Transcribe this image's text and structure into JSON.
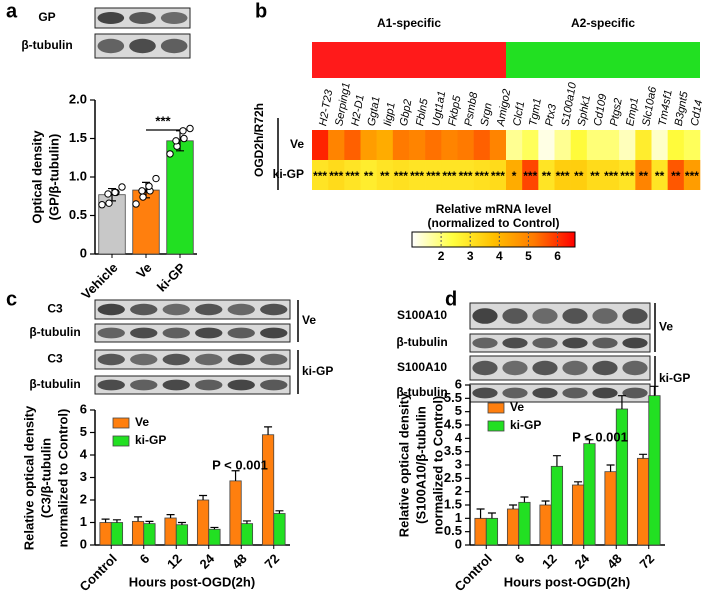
{
  "chart_data": [
    {
      "type": "bar",
      "panel": "a",
      "blot": {
        "rows": [
          "GP",
          "β-tubulin"
        ]
      },
      "ylabel": [
        "Optical density",
        "(GP/β-tubulin)"
      ],
      "categories": [
        "Vehicle",
        "Ve",
        "ki-GP"
      ],
      "values": [
        0.77,
        0.83,
        1.47
      ],
      "errors": [
        0.08,
        0.1,
        0.13
      ],
      "colors": [
        "#c8c8c8",
        "#ff7f0e",
        "#22e022"
      ],
      "points": [
        [
          0.64,
          0.66,
          0.8,
          0.78,
          0.8,
          0.87
        ],
        [
          0.65,
          0.74,
          0.82,
          0.82,
          0.88,
          0.98
        ],
        [
          1.3,
          1.4,
          1.5,
          1.47,
          1.6,
          1.63
        ]
      ],
      "significance": {
        "label": "***",
        "between": [
          "Ve",
          "ki-GP"
        ]
      },
      "ylim": [
        0,
        2
      ],
      "yticks": [
        0,
        0.5,
        {
          "value": 1,
          "label": "1.0"
        },
        1.5,
        {
          "value": 2,
          "label": "2.0"
        }
      ]
    },
    {
      "type": "heatmap",
      "panel": "b",
      "groups": [
        {
          "name": "A1-specific",
          "color": "#ff1a1a"
        },
        {
          "name": "A2-specific",
          "color": "#22e022"
        }
      ],
      "row_group": "OGD2h/R72h",
      "x": [
        "H2-T23",
        "Serping1",
        "H2-D1",
        "Ggta1",
        "Iigp1",
        "Gbp2",
        "Fbln5",
        "Ugt1a1",
        "Fkbp5",
        "Psmb8",
        "Srgn",
        "Amigo2",
        "Clcf1",
        "Tgm1",
        "Ptx3",
        "S100a10",
        "Sphk1",
        "Cd109",
        "Ptgs2",
        "Emp1",
        "Slc10a6",
        "Tm4sf1",
        "B3gnt5",
        "Cd14"
      ],
      "y": [
        "Ve",
        "ki-GP"
      ],
      "values": [
        [
          6.2,
          5.0,
          5.5,
          4.5,
          4.2,
          5.2,
          5.0,
          5.3,
          5.0,
          5.2,
          5.5,
          5.0,
          1.8,
          2.2,
          1.2,
          1.8,
          2.5,
          2.0,
          2.0,
          1.5,
          2.8,
          1.4,
          2.5,
          2.2
        ],
        [
          3.0,
          3.2,
          3.0,
          2.8,
          3.0,
          3.1,
          3.0,
          3.0,
          3.0,
          3.0,
          3.1,
          3.2,
          4.2,
          5.8,
          3.0,
          3.5,
          3.5,
          3.2,
          3.2,
          3.0,
          5.0,
          3.0,
          5.6,
          4.5
        ]
      ],
      "significance": [
        "***",
        "***",
        "***",
        "**",
        "**",
        "***",
        "***",
        "***",
        "***",
        "***",
        "***",
        "***",
        "*",
        "***",
        "**",
        "***",
        "**",
        "**",
        "***",
        "***",
        "**",
        "**",
        "**",
        "***"
      ],
      "colorbar": {
        "title": [
          "Relative mRNA level",
          "(normalized to Control)"
        ],
        "lim": [
          1,
          6.6
        ],
        "ticks": [
          2,
          3,
          4,
          5,
          6
        ]
      },
      "colormap": [
        "#ffffff",
        "#ffff40",
        "#ffc000",
        "#ff7a00",
        "#ff0000"
      ]
    },
    {
      "type": "bar",
      "panel": "c",
      "blot": {
        "rows": [
          "C3",
          "β-tubulin",
          "C3",
          "β-tubulin"
        ],
        "groups": [
          "Ve",
          "ki-GP"
        ]
      },
      "ylabel": [
        "Relative optical density",
        "(C3/β-tubulin",
        "normalized to Control)"
      ],
      "xlabel": "Hours post-OGD(2h)",
      "annotation": "P < 0.001",
      "categories": [
        "Control",
        "6",
        "12",
        "24",
        "48",
        "72"
      ],
      "series": [
        {
          "name": "Ve",
          "color": "#ff7f0e",
          "values": [
            1.0,
            1.05,
            1.2,
            2.0,
            2.85,
            4.9
          ],
          "errors": [
            0.15,
            0.2,
            0.15,
            0.2,
            0.45,
            0.35
          ]
        },
        {
          "name": "ki-GP",
          "color": "#22e022",
          "values": [
            1.0,
            0.95,
            0.9,
            0.7,
            0.95,
            1.4
          ],
          "errors": [
            0.12,
            0.1,
            0.1,
            0.08,
            0.12,
            0.12
          ]
        }
      ],
      "ylim": [
        0,
        6
      ],
      "yticks": [
        0,
        1,
        2,
        3,
        4,
        5,
        6
      ]
    },
    {
      "type": "bar",
      "panel": "d",
      "blot": {
        "rows": [
          "S100A10",
          "β-tubulin",
          "S100A10",
          "β-tubulin"
        ],
        "groups": [
          "Ve",
          "ki-GP"
        ]
      },
      "ylabel": [
        "Relative optical density",
        "(S100A10/β-tubulin",
        "normalized to Control)"
      ],
      "xlabel": "Hours post-OGD(2h)",
      "annotation": "P < 0.001",
      "categories": [
        "Control",
        "6",
        "12",
        "24",
        "48",
        "72"
      ],
      "series": [
        {
          "name": "Ve",
          "color": "#ff7f0e",
          "values": [
            1.0,
            1.35,
            1.5,
            2.25,
            2.75,
            3.25
          ],
          "errors": [
            0.35,
            0.15,
            0.15,
            0.12,
            0.25,
            0.15
          ]
        },
        {
          "name": "ki-GP",
          "color": "#22e022",
          "values": [
            1.0,
            1.6,
            2.95,
            3.8,
            5.1,
            5.6
          ],
          "errors": [
            0.2,
            0.2,
            0.4,
            0.15,
            0.5,
            0.35
          ]
        }
      ],
      "ylim": [
        0,
        6
      ],
      "yticks": [
        0,
        0.5,
        1,
        1.5,
        2,
        2.5,
        3,
        3.5,
        4,
        4.5,
        5,
        5.5,
        6
      ]
    }
  ]
}
